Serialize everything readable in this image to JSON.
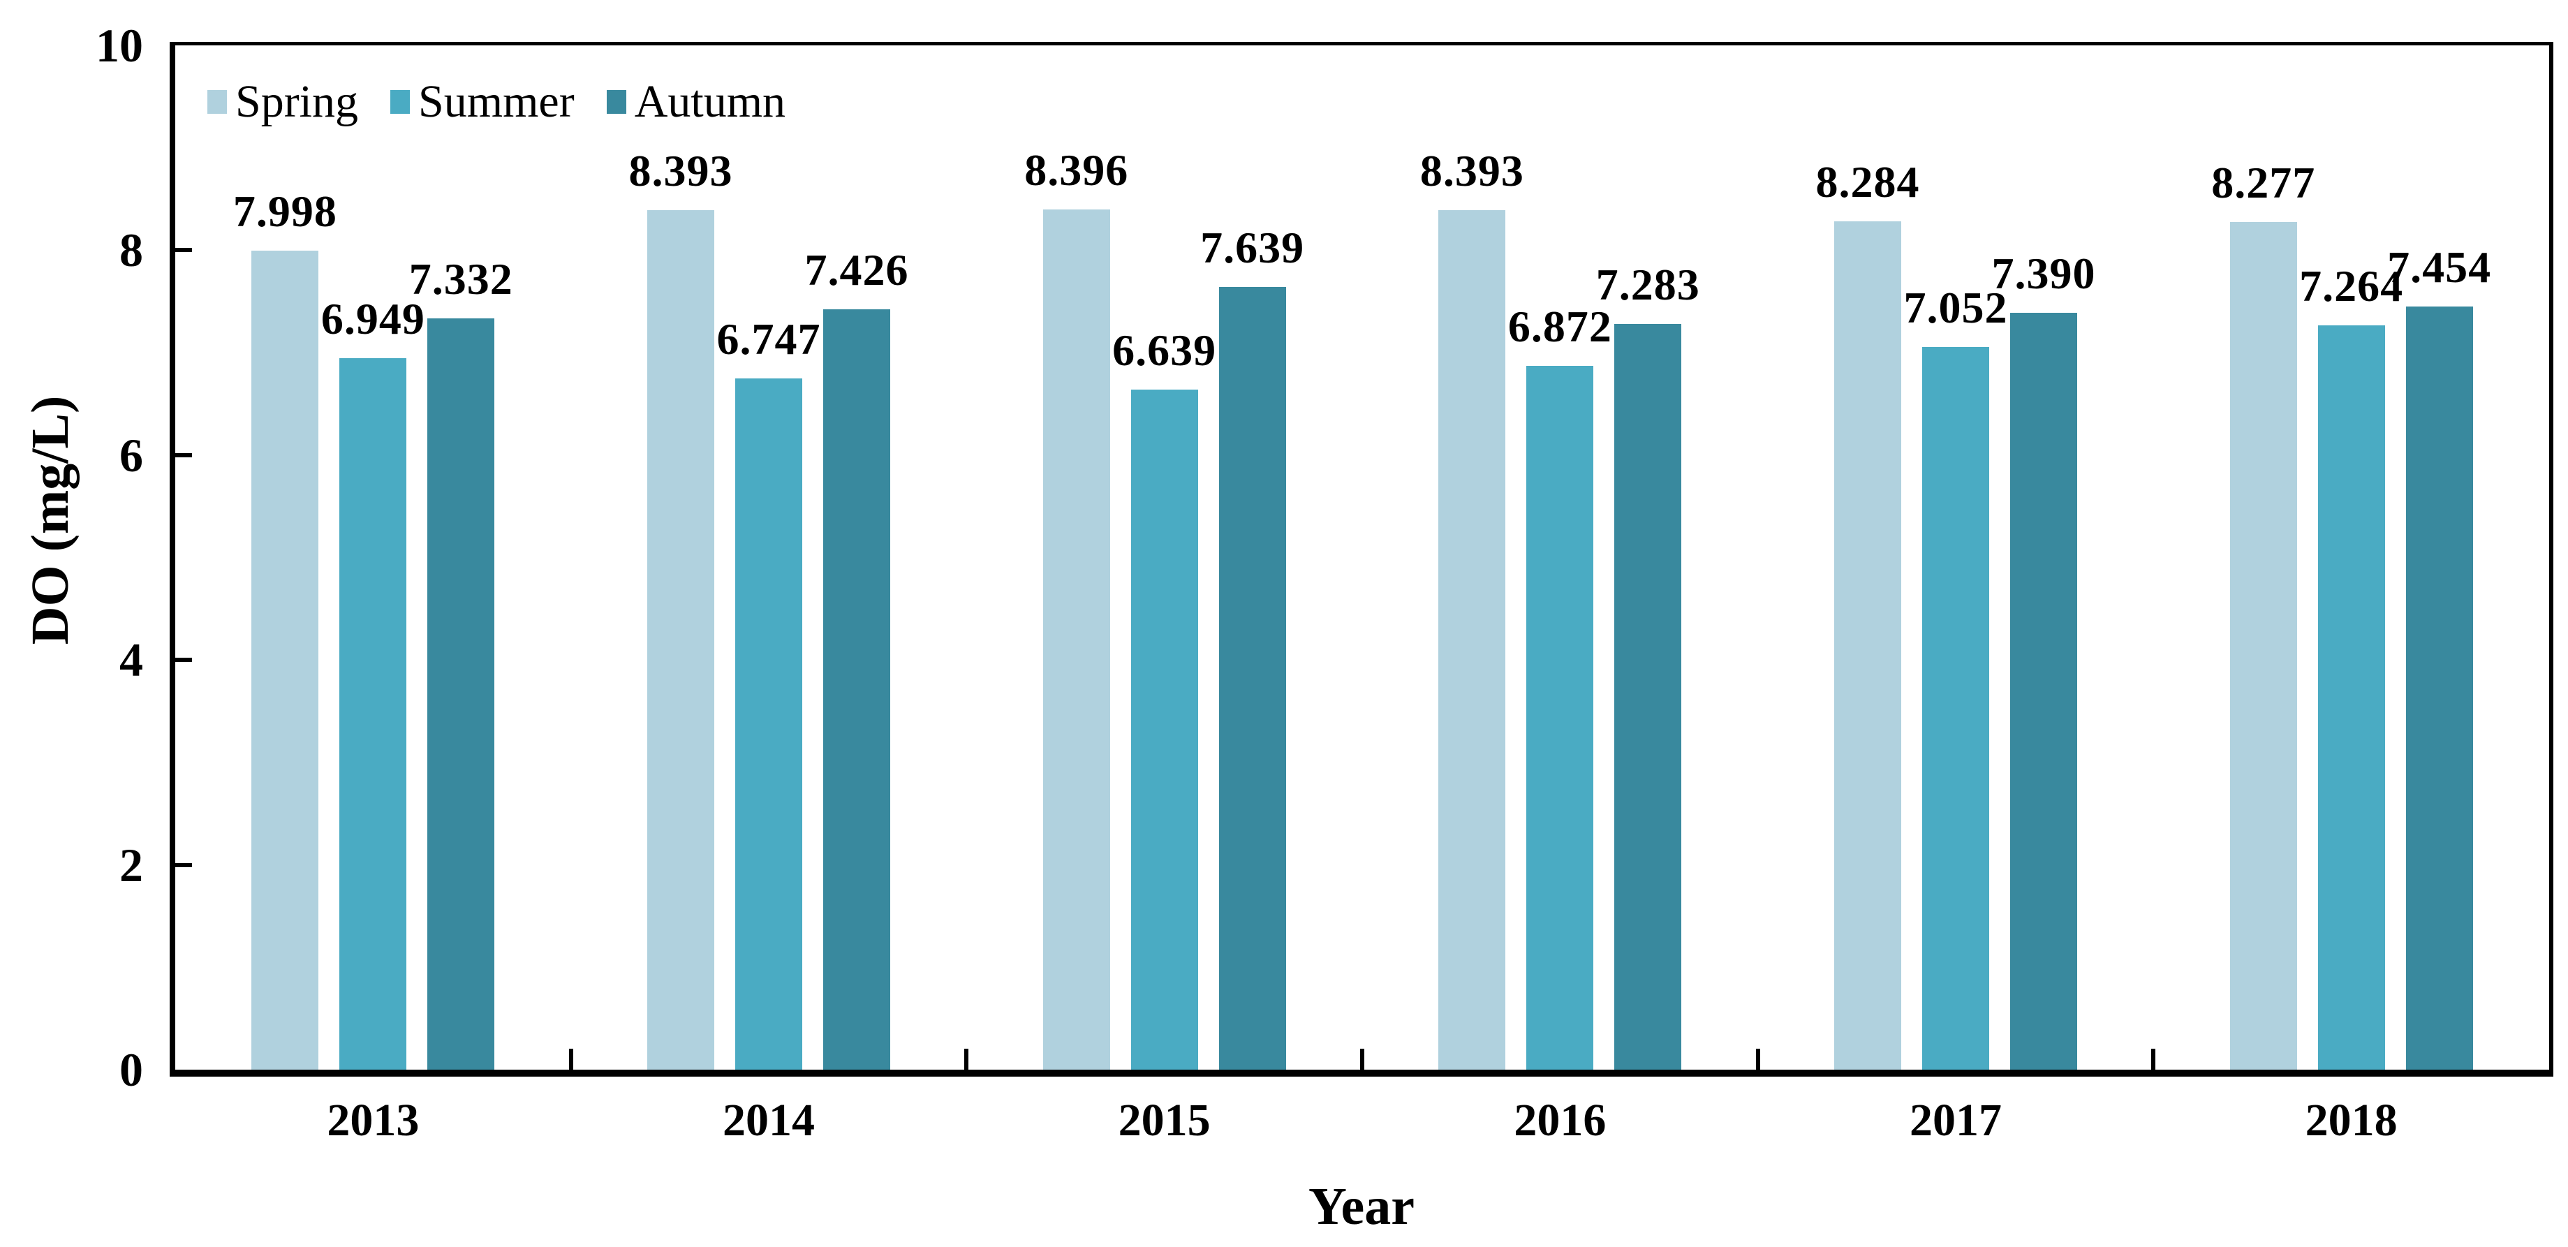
{
  "chart_data": {
    "type": "bar",
    "title": "",
    "xlabel": "Year",
    "ylabel": "DO (mg/L)",
    "ylim": [
      0,
      10
    ],
    "yticks": [
      0,
      2,
      4,
      6,
      8,
      10
    ],
    "grid": false,
    "legend_position": "top-left",
    "value_labels_decimals": 3,
    "categories": [
      "2013",
      "2014",
      "2015",
      "2016",
      "2017",
      "2018"
    ],
    "series": [
      {
        "name": "Spring",
        "color": "#b0d1de",
        "values": [
          7.998,
          8.393,
          8.396,
          8.393,
          8.284,
          8.277
        ]
      },
      {
        "name": "Summer",
        "color": "#4aabc3",
        "values": [
          6.949,
          6.747,
          6.639,
          6.872,
          7.052,
          7.264
        ]
      },
      {
        "name": "Autumn",
        "color": "#39899e",
        "values": [
          7.332,
          7.426,
          7.639,
          7.283,
          7.39,
          7.454
        ]
      }
    ],
    "axis_color": "#000000",
    "text_color": "#000000",
    "background_color": "#ffffff"
  }
}
